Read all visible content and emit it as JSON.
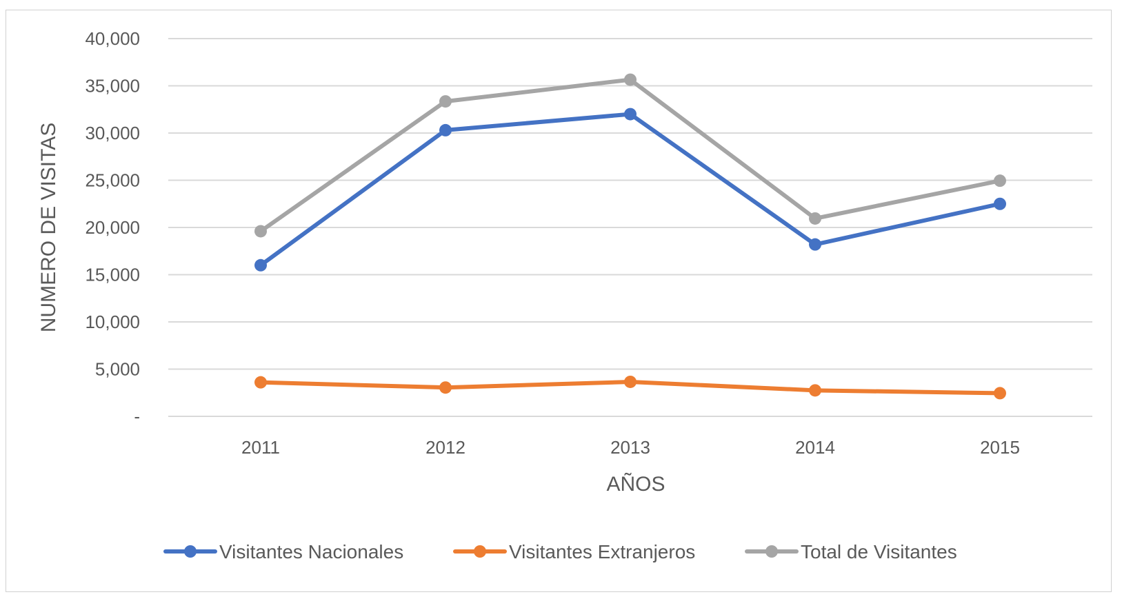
{
  "chart_data": {
    "type": "line",
    "title": "",
    "xlabel": "AÑOS",
    "ylabel": "NUMERO DE VISITAS",
    "categories": [
      "2011",
      "2012",
      "2013",
      "2014",
      "2015"
    ],
    "ylim": [
      0,
      40000
    ],
    "yticks": [
      0,
      5000,
      10000,
      15000,
      20000,
      25000,
      30000,
      35000,
      40000
    ],
    "ytick_labels": [
      "-",
      "5,000",
      "10,000",
      "15,000",
      "20,000",
      "25,000",
      "30,000",
      "35,000",
      "40,000"
    ],
    "grid": true,
    "legend_position": "bottom",
    "series": [
      {
        "name": "Visitantes Nacionales",
        "color": "#4472C4",
        "values": [
          16000,
          30300,
          32000,
          18200,
          22500
        ]
      },
      {
        "name": "Visitantes Extranjeros",
        "color": "#ED7D31",
        "values": [
          3600,
          3050,
          3650,
          2750,
          2450
        ]
      },
      {
        "name": "Total de Visitantes",
        "color": "#A5A5A5",
        "values": [
          19600,
          33350,
          35650,
          20950,
          24950
        ]
      }
    ]
  }
}
